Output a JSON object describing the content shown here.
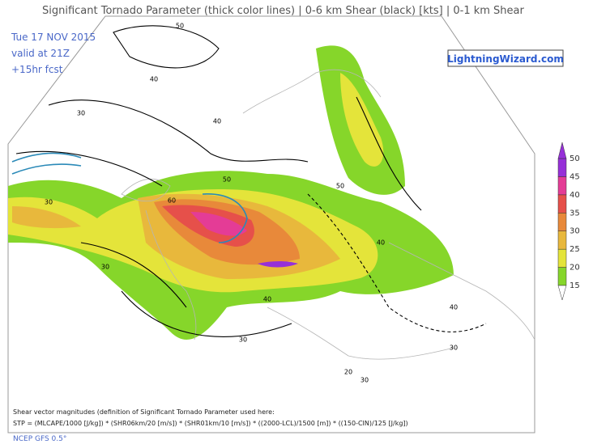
{
  "title": "Significant Tornado Parameter (thick color lines) | 0-6 km Shear (black) [kts] | 0-1 km Shear",
  "info": [
    "Tue 17 NOV 2015",
    "valid at 21Z",
    "+15hr fcst"
  ],
  "logo": "LightningWizard.com",
  "colorbar": {
    "ticks": [
      15,
      20,
      25,
      30,
      35,
      40,
      45,
      50
    ],
    "colors": [
      "#86d62a",
      "#e4e43a",
      "#e8b83c",
      "#e8893a",
      "#e6504a",
      "#e43c96",
      "#9630d8"
    ]
  },
  "contour_labels": [
    50,
    40,
    30,
    40,
    30,
    50,
    60,
    30,
    40,
    50,
    40,
    30,
    30,
    40,
    30,
    20
  ],
  "footer": [
    "Shear vector magnitudes (definition of Significant Tornado Parameter used here:",
    "STP = (MLCAPE/1000 [J/kg]) * (SHR06km/20 [m/s]) * (SHR01km/10 [m/s]) * ((2000-LCL)/1500 [m]) * ((150-CIN)/125 [J/kg])",
    "NCEP GFS 0.5°"
  ]
}
